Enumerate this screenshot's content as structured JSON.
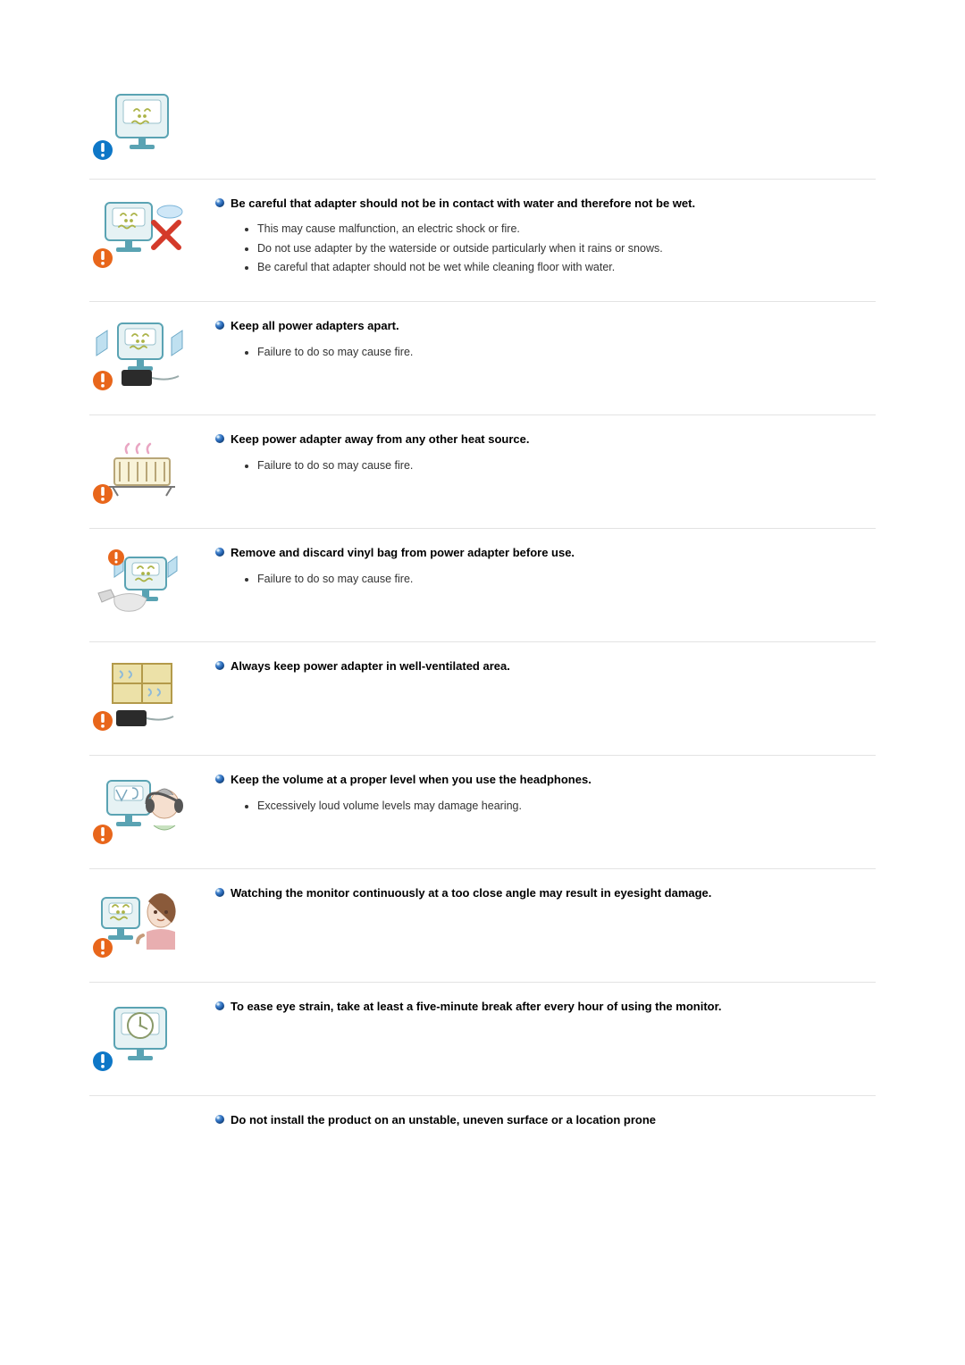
{
  "bullet_color": "#2a6bbd",
  "warn_color": "#e8661b",
  "caution_color": "#0e77c7",
  "sections": [
    {
      "id": "top",
      "icon_type": "monitor_warn",
      "heading": "",
      "items": [],
      "divider": true,
      "icon_only": true
    },
    {
      "id": "water",
      "icon_type": "monitor_x_water",
      "heading": "Be careful that adapter should not be in contact with water and therefore not be wet.",
      "items": [
        "This may cause malfunction, an electric shock or fire.",
        "Do not use adapter by the waterside or outside particularly when it rains or snows.",
        "Be careful that adapter should not be wet while cleaning floor with water."
      ],
      "divider": true
    },
    {
      "id": "apart",
      "icon_type": "adapters_apart",
      "heading": "Keep all power adapters apart.",
      "items": [
        "Failure to do so may cause fire."
      ],
      "divider": true
    },
    {
      "id": "heat",
      "icon_type": "heater",
      "heading": "Keep power adapter away from any other heat source.",
      "items": [
        "Failure to do so may cause fire."
      ],
      "divider": true
    },
    {
      "id": "vinyl",
      "icon_type": "vinyl_bag",
      "heading": "Remove and discard vinyl bag from power adapter before use.",
      "items": [
        "Failure to do so may cause fire."
      ],
      "divider": true
    },
    {
      "id": "vent",
      "icon_type": "ventilated",
      "heading": "Always keep power adapter in well-ventilated area.",
      "items": [],
      "divider": true
    },
    {
      "id": "volume",
      "icon_type": "headphones",
      "heading": "Keep the volume at a proper level when you use the headphones.",
      "items": [
        "Excessively loud volume levels may damage hearing."
      ],
      "divider": true
    },
    {
      "id": "close_angle",
      "icon_type": "close_watch",
      "heading": "Watching the monitor continuously at a too close angle may result in eyesight damage.",
      "items": [],
      "divider": true
    },
    {
      "id": "eye_break",
      "icon_type": "clock_monitor",
      "heading": "To ease eye strain, take at least a five-minute break after every hour of using the monitor.",
      "items": [],
      "divider": true,
      "trailing_period": true
    },
    {
      "id": "unstable",
      "icon_type": "none",
      "heading": "Do not install the product on an unstable, uneven surface or a location prone",
      "items": [],
      "divider": false,
      "no_icon": true
    }
  ]
}
